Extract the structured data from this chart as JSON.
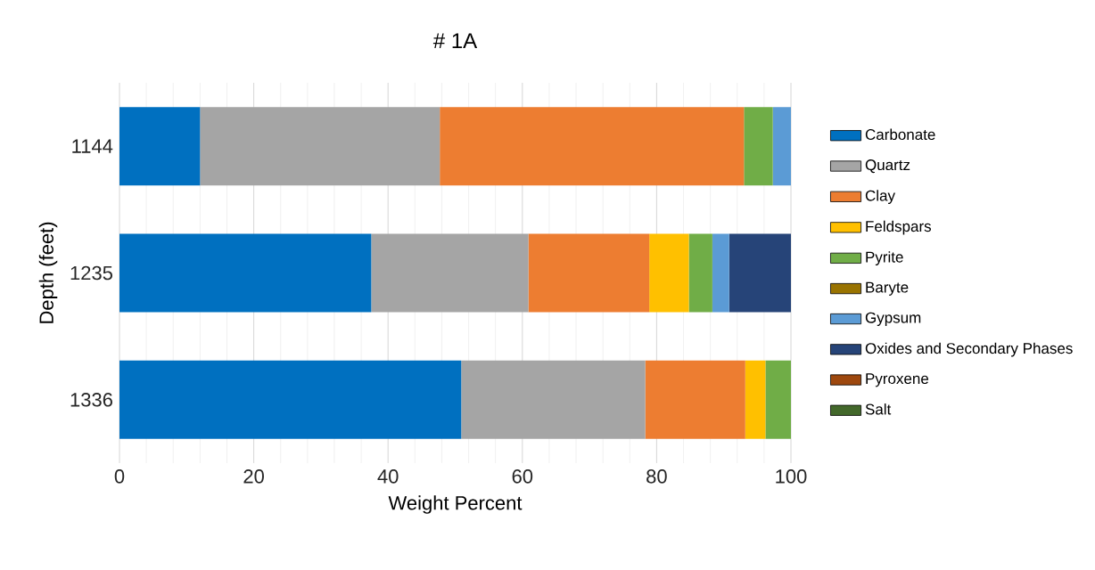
{
  "chart_data": {
    "type": "bar",
    "orientation": "horizontal",
    "stacked": true,
    "title": "# 1A",
    "xlabel": "Weight Percent",
    "ylabel": "Depth (feet)",
    "categories": [
      "1144",
      "1235",
      "1336"
    ],
    "series": [
      {
        "name": "Carbonate",
        "color": "#0070c0",
        "values": [
          12.0,
          37.5,
          50.9
        ]
      },
      {
        "name": "Quartz",
        "color": "#a5a5a5",
        "values": [
          35.7,
          23.4,
          27.4
        ]
      },
      {
        "name": "Clay",
        "color": "#ed7d31",
        "values": [
          45.3,
          18.0,
          14.9
        ]
      },
      {
        "name": "Feldspars",
        "color": "#ffc000",
        "values": [
          0,
          5.9,
          3.0
        ]
      },
      {
        "name": "Pyrite",
        "color": "#70ad47",
        "values": [
          4.3,
          3.5,
          3.8
        ]
      },
      {
        "name": "Baryte",
        "color": "#997300",
        "values": [
          0,
          0,
          0
        ]
      },
      {
        "name": "Gypsum",
        "color": "#5b9bd5",
        "values": [
          2.7,
          2.5,
          0
        ]
      },
      {
        "name": "Oxides and Secondary Phases",
        "color": "#264478",
        "values": [
          0,
          9.2,
          0
        ]
      },
      {
        "name": "Pyroxene",
        "color": "#9e480e",
        "values": [
          0,
          0,
          0
        ]
      },
      {
        "name": "Salt",
        "color": "#43682b",
        "values": [
          0,
          0,
          0
        ]
      }
    ],
    "xlim": [
      0,
      100
    ],
    "xticks": [
      0,
      20,
      40,
      60,
      80,
      100
    ],
    "grid": "x",
    "legend": "right"
  }
}
